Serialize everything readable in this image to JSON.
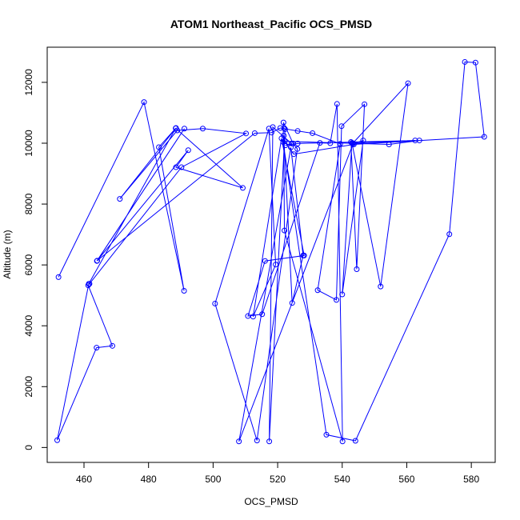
{
  "chart_data": {
    "type": "scatter",
    "title": "ATOM1 Northeast_Pacific OCS_PMSD",
    "xlabel": "OCS_PMSD",
    "ylabel": "Altitude (m)",
    "xlim": [
      448.6,
      587.4
    ],
    "ylim": [
      -490,
      13155
    ],
    "x_ticks": [
      460,
      480,
      500,
      520,
      540,
      560,
      580
    ],
    "y_ticks": [
      0,
      2000,
      4000,
      6000,
      8000,
      10000,
      12000
    ],
    "grid": false,
    "legend": "none",
    "mode": "lines+points",
    "color": "#0000ff",
    "series": [
      {
        "x": [
          452.1,
          478.6,
          491.0,
          483.2,
          488.5,
          471.1,
          488.9,
          496.8,
          510.2,
          490.2,
          461.7,
          461.3,
          468.8,
          463.9,
          451.7,
          461.5,
          488.4,
          509.2,
          488.5,
          492.3,
          464.0,
          491.1,
          464.1,
          512.9,
          518.1,
          520.8,
          526.2,
          530.8,
          539.4,
          532.4,
          538.2,
          539.8,
          546.9,
          544.5,
          542.7,
          563.9,
          554.5,
          522.2,
          525.0,
          543.6,
          584.0,
          581.3,
          578.0,
          573.2,
          544.1,
          535.1,
          521.7,
          521.8,
          524.8,
          526.1,
          513.6,
          500.6,
          517.3,
          519.4,
          512.4,
          521.2,
          528.2,
          516.1,
          510.8,
          515.2,
          533.1,
          536.3,
          538.4,
          540.1,
          522.1,
          521.9,
          524.5,
          527.9,
          524.1,
          508.0,
          543.4,
          546.5,
          540.0,
          543.0,
          551.9,
          560.4,
          543.3,
          562.6,
          526.2,
          522.4,
          524.3,
          518.5,
          517.4,
          522.3,
          522.0
        ],
        "y": [
          5600,
          11350,
          5150,
          9870,
          10500,
          8170,
          10420,
          10480,
          10320,
          9210,
          5380,
          5330,
          3340,
          3280,
          240,
          5380,
          10490,
          8530,
          9210,
          9770,
          6130,
          10480,
          6140,
          10330,
          10350,
          10500,
          10400,
          10330,
          9980,
          5170,
          4850,
          10560,
          11280,
          5860,
          10040,
          10090,
          9960,
          10060,
          9640,
          9960,
          10210,
          12650,
          12670,
          7010,
          220,
          420,
          10040,
          10680,
          9990,
          9810,
          230,
          4730,
          10480,
          6010,
          4300,
          10160,
          6310,
          6130,
          4320,
          4380,
          10010,
          10000,
          11290,
          200,
          7130,
          10250,
          4750,
          6310,
          9860,
          200,
          9990,
          10090,
          5030,
          10010,
          5290,
          11970,
          10000,
          10090,
          9990,
          9930,
          9990,
          10530,
          200,
          10460,
          10500
        ]
      }
    ]
  }
}
